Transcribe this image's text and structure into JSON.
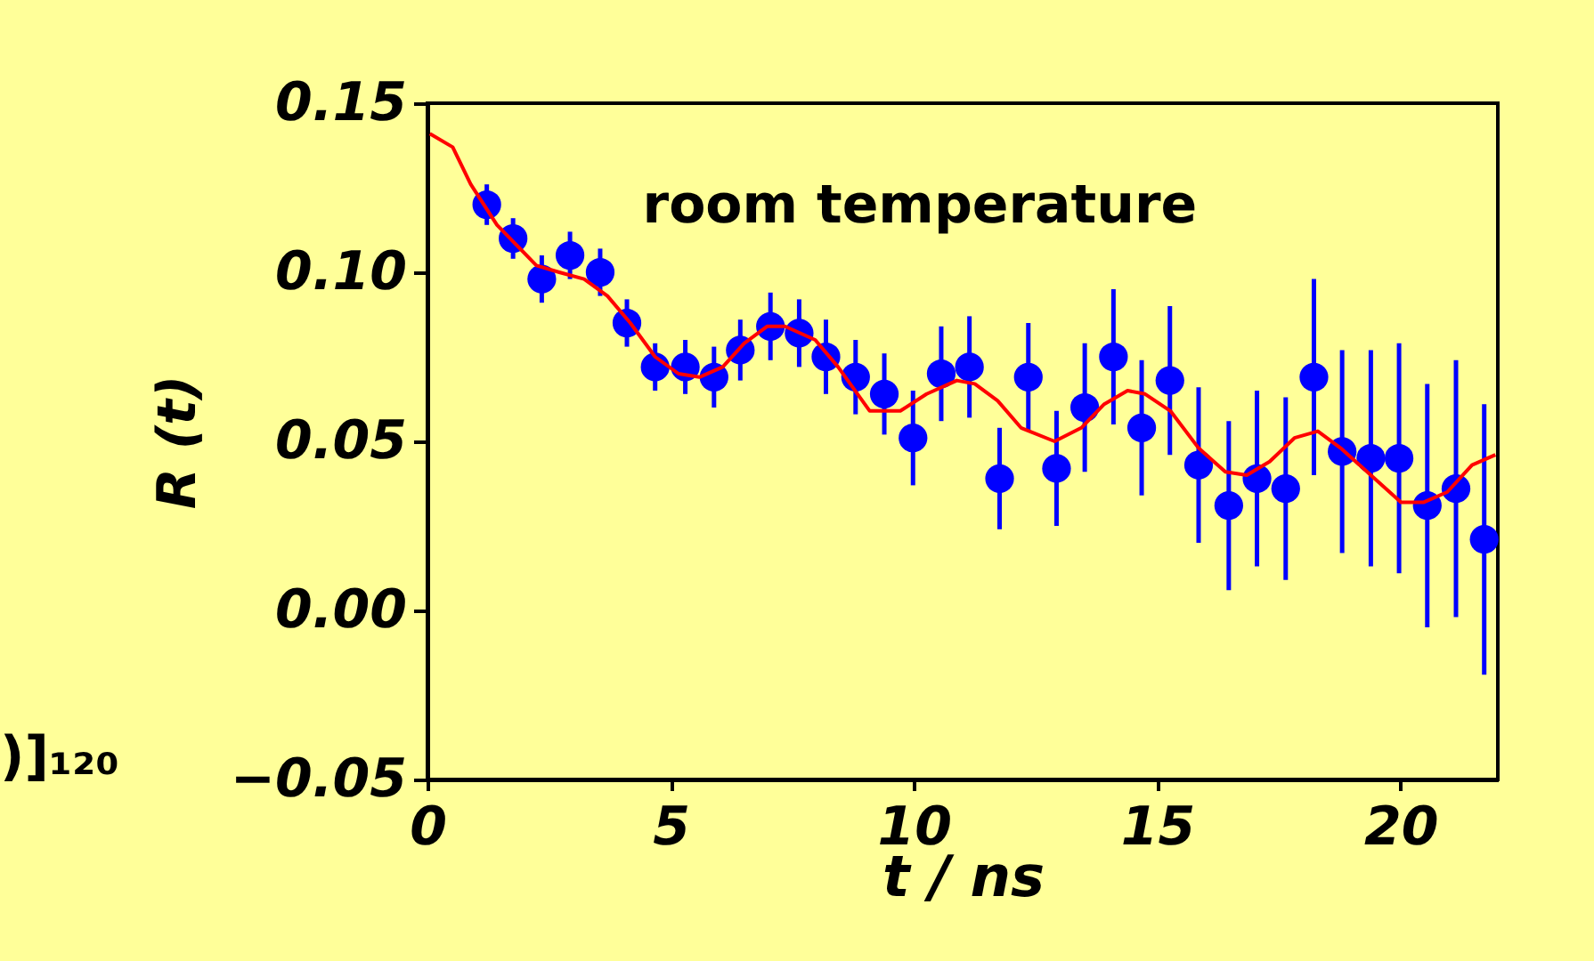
{
  "chart_data": {
    "type": "scatter",
    "xlabel": "t / ns",
    "ylabel": "R (t)",
    "annotations": [
      "room temperature",
      ")]₁₂₀"
    ],
    "xlim": [
      0,
      22
    ],
    "xticks": [
      0,
      5,
      10,
      15,
      20
    ],
    "ylim": [
      -0.05,
      0.15
    ],
    "yticks": [
      -0.05,
      {
        "value": 0,
        "label": "0.00"
      },
      0.05,
      {
        "value": 0.1,
        "label": "0.10"
      },
      0.15
    ],
    "grid": false,
    "marker": "circle",
    "series": [
      {
        "color": "#0000ff",
        "x": [
          1.22,
          1.76,
          2.35,
          2.93,
          3.55,
          4.1,
          4.68,
          5.3,
          5.89,
          6.43,
          7.05,
          7.64,
          8.19,
          8.8,
          9.39,
          9.98,
          10.56,
          11.14,
          11.76,
          12.35,
          12.93,
          13.51,
          14.1,
          14.68,
          15.26,
          15.85,
          16.47,
          17.05,
          17.64,
          18.22,
          18.8,
          19.39,
          19.97,
          20.55,
          21.14,
          21.72
        ],
        "values": [
          0.12,
          0.11,
          0.098,
          0.105,
          0.1,
          0.085,
          0.072,
          0.072,
          0.069,
          0.077,
          0.084,
          0.082,
          0.075,
          0.069,
          0.064,
          0.051,
          0.07,
          0.072,
          0.039,
          0.069,
          0.042,
          0.06,
          0.075,
          0.054,
          0.068,
          0.043,
          0.031,
          0.039,
          0.036,
          0.069,
          0.047,
          0.045,
          0.045,
          0.031,
          0.036,
          0.021
        ],
        "errors": [
          0.006,
          0.006,
          0.007,
          0.007,
          0.007,
          0.007,
          0.007,
          0.008,
          0.009,
          0.009,
          0.01,
          0.01,
          0.011,
          0.011,
          0.012,
          0.014,
          0.014,
          0.015,
          0.015,
          0.016,
          0.017,
          0.019,
          0.02,
          0.02,
          0.022,
          0.023,
          0.025,
          0.026,
          0.027,
          0.029,
          0.03,
          0.032,
          0.034,
          0.036,
          0.038,
          0.04
        ]
      },
      {
        "type": "line",
        "color": "#ff0000",
        "line_style": "solid",
        "marker": "none",
        "x": [
          0.05,
          0.52,
          0.89,
          1.43,
          2.24,
          2.71,
          3.22,
          3.7,
          4.17,
          4.68,
          5.16,
          5.59,
          6.07,
          6.51,
          6.98,
          7.35,
          7.97,
          8.44,
          9.09,
          9.72,
          10.26,
          10.88,
          11.25,
          11.72,
          12.2,
          12.89,
          13.44,
          13.91,
          14.39,
          14.75,
          15.27,
          15.85,
          16.4,
          16.84,
          17.31,
          17.82,
          18.3,
          18.77,
          19.39,
          20.01,
          20.48,
          20.96,
          21.47,
          21.95
        ],
        "values": [
          0.141,
          0.137,
          0.126,
          0.114,
          0.102,
          0.1,
          0.098,
          0.093,
          0.085,
          0.075,
          0.07,
          0.069,
          0.072,
          0.079,
          0.084,
          0.084,
          0.08,
          0.072,
          0.059,
          0.059,
          0.064,
          0.068,
          0.067,
          0.062,
          0.054,
          0.05,
          0.054,
          0.061,
          0.065,
          0.064,
          0.059,
          0.048,
          0.041,
          0.04,
          0.044,
          0.051,
          0.053,
          0.048,
          0.04,
          0.032,
          0.032,
          0.035,
          0.043,
          0.046
        ]
      }
    ]
  }
}
